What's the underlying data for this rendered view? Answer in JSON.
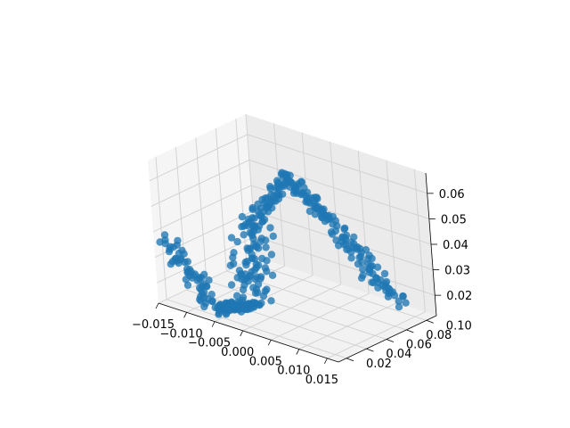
{
  "chart_data": {
    "type": "scatter",
    "projection": "3d",
    "title": "",
    "xlabel": "",
    "ylabel": "",
    "zlabel": "",
    "xlim": [
      -0.015,
      0.017
    ],
    "ylim": [
      0.012,
      0.11
    ],
    "zlim": [
      0.012,
      0.068
    ],
    "xticks": [
      -0.015,
      -0.01,
      -0.005,
      0.0,
      0.005,
      0.01,
      0.015
    ],
    "xtick_labels": [
      "−0.015",
      "−0.010",
      "−0.005",
      "0.000",
      "0.005",
      "0.010",
      "0.015"
    ],
    "yticks": [
      0.02,
      0.04,
      0.06,
      0.08,
      0.1
    ],
    "ytick_labels": [
      "0.02",
      "0.04",
      "0.06",
      "0.08",
      "0.10"
    ],
    "zticks": [
      0.02,
      0.03,
      0.04,
      0.05,
      0.06
    ],
    "ztick_labels": [
      "0.02",
      "0.03",
      "0.04",
      "0.05",
      "0.06"
    ],
    "grid": true,
    "series": [
      {
        "color": "#1f77b4",
        "description_segments": [
          {
            "from": [
              -0.0145,
              0.02,
              0.036
            ],
            "to": [
              -0.006,
              0.02,
              0.015
            ],
            "count": 60,
            "spread": 0.0016
          },
          {
            "from": [
              -0.006,
              0.02,
              0.015
            ],
            "to": [
              0.0,
              0.022,
              0.02
            ],
            "count": 60,
            "spread": 0.0012
          },
          {
            "from": [
              0.0,
              0.022,
              0.02
            ],
            "to": [
              -0.001,
              0.032,
              0.048
            ],
            "count": 90,
            "spread": 0.0025
          },
          {
            "from": [
              -0.001,
              0.032,
              0.048
            ],
            "to": [
              0.002,
              0.055,
              0.066
            ],
            "count": 60,
            "spread": 0.0012
          },
          {
            "from": [
              0.002,
              0.055,
              0.066
            ],
            "to": [
              0.005,
              0.075,
              0.048
            ],
            "count": 60,
            "spread": 0.001
          },
          {
            "from": [
              0.005,
              0.075,
              0.048
            ],
            "to": [
              0.012,
              0.1,
              0.016
            ],
            "count": 80,
            "spread": 0.0015
          }
        ]
      }
    ]
  }
}
